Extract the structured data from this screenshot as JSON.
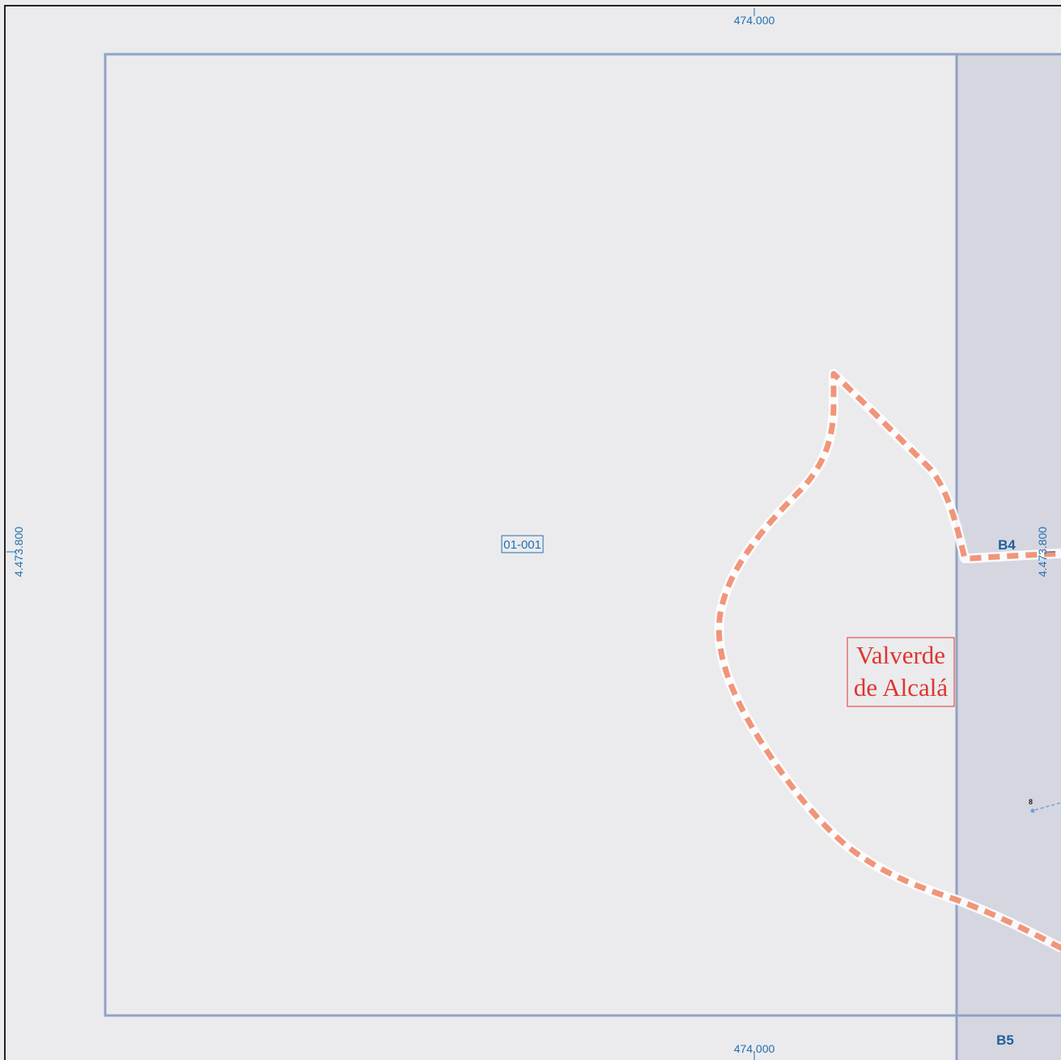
{
  "map": {
    "coordinates": {
      "top_easting": "474.000",
      "bottom_easting": "474.000",
      "left_northing": "4.473.800",
      "right_northing": "4.473.800"
    },
    "sheet_id": "01-001",
    "place_name": {
      "line1": "Valverde",
      "line2": "de Alcalá"
    },
    "grid_labels": {
      "adjacent_right": "B4",
      "adjacent_bottom_right": "B5"
    },
    "feature_label": "8",
    "colors": {
      "background": "#ebebed",
      "adjacent_sheet": "#d6d6e1",
      "sheet_border": "#8fa3c4",
      "municipal_boundary": "#f0957a",
      "coordinate_text": "#1f6fb2",
      "place_label": "#e0342e",
      "frame": "#222222"
    }
  }
}
